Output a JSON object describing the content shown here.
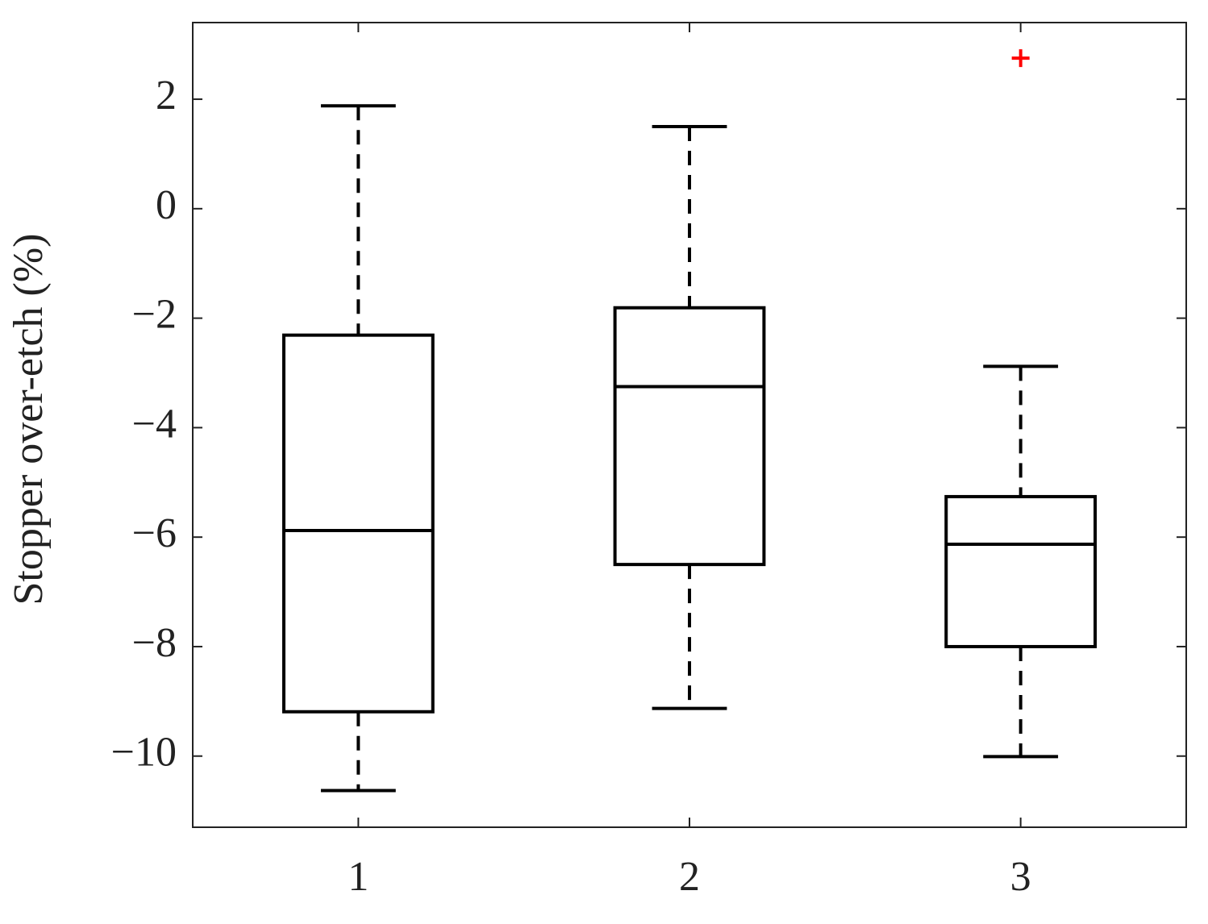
{
  "chart_data": {
    "type": "box",
    "y_label": "Stopper over-etch (%)",
    "categories": [
      "1",
      "2",
      "3"
    ],
    "boxes": [
      {
        "whisker_high": 1.88,
        "q3": -2.31,
        "median": -5.88,
        "q1": -9.19,
        "whisker_low": -10.63,
        "outliers": []
      },
      {
        "whisker_high": 1.5,
        "q3": -1.81,
        "median": -3.25,
        "q1": -6.5,
        "whisker_low": -9.13,
        "outliers": []
      },
      {
        "whisker_high": -2.88,
        "q3": -5.26,
        "median": -6.13,
        "q1": -8.0,
        "whisker_low": -10.01,
        "outliers": [
          2.75
        ]
      }
    ],
    "color": "#000000",
    "outlier_color": "#ff0000",
    "ylim": [
      -11.3,
      3.4
    ],
    "yticks": [
      {
        "value": -10,
        "label": "−10"
      },
      {
        "value": -8,
        "label": "−8"
      },
      {
        "value": -6,
        "label": "−6"
      },
      {
        "value": -4,
        "label": "−4"
      },
      {
        "value": -2,
        "label": "−2"
      },
      0,
      2
    ],
    "grid": false
  }
}
